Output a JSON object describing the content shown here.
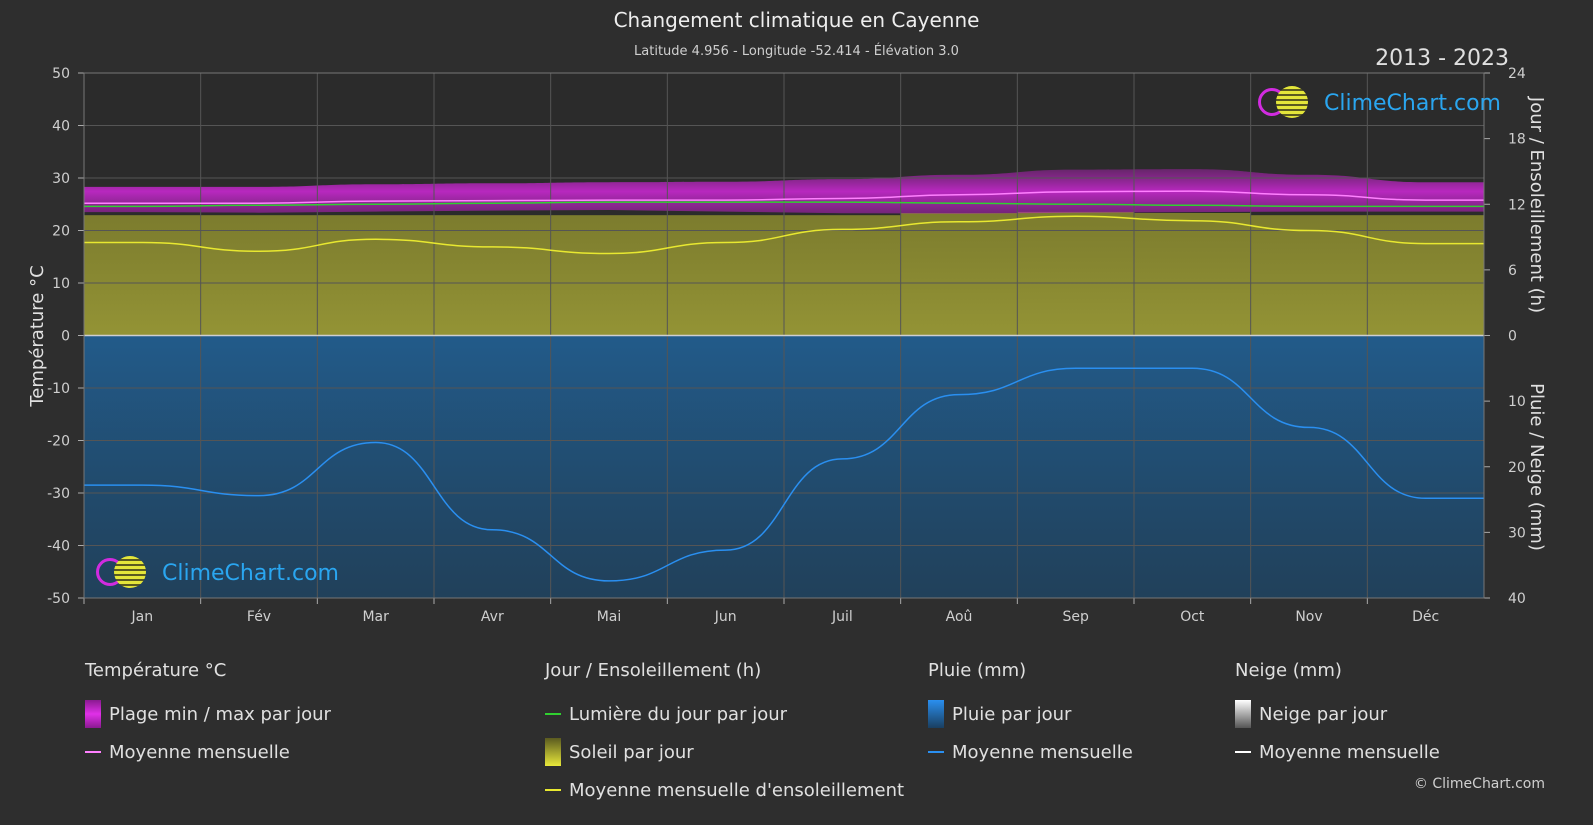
{
  "title": "Changement climatique en Cayenne",
  "subtitle": "Latitude 4.956 - Longitude -52.414 - Élévation 3.0",
  "period": "2013 - 2023",
  "brand": "ClimeChart.com",
  "copyright": "© ClimeChart.com",
  "colors": {
    "background": "#2e2e2e",
    "temp_range": "#c020c8",
    "temp_mean": "#ff80ff",
    "daylight": "#30d030",
    "sunshine_fill": "#b8b840",
    "sunshine_mean": "#e8e830",
    "rain_fill": "#1f5f94",
    "rain_mean": "#2a8ff0",
    "snow": "#ffffff"
  },
  "legend": {
    "temperature": {
      "heading": "Température °C",
      "range": "Plage min / max par jour",
      "mean": "Moyenne mensuelle"
    },
    "sun": {
      "heading": "Jour / Ensoleillement (h)",
      "daylight": "Lumière du jour par jour",
      "sunshine": "Soleil par jour",
      "sunshine_mean": "Moyenne mensuelle d'ensoleillement"
    },
    "rain": {
      "heading": "Pluie (mm)",
      "daily": "Pluie par jour",
      "mean": "Moyenne mensuelle"
    },
    "snow": {
      "heading": "Neige (mm)",
      "daily": "Neige par jour",
      "mean": "Moyenne mensuelle"
    }
  },
  "chart_data": {
    "type": "area",
    "categories": [
      "Jan",
      "Fév",
      "Mar",
      "Avr",
      "Mai",
      "Jun",
      "Juil",
      "Aoû",
      "Sep",
      "Oct",
      "Nov",
      "Déc"
    ],
    "axes": {
      "left": {
        "label": "Température °C",
        "min": -50,
        "max": 50,
        "ticks": [
          50,
          40,
          30,
          20,
          10,
          0,
          -10,
          -20,
          -30,
          -40,
          -50
        ]
      },
      "right_top": {
        "label": "Jour / Ensoleillement (h)",
        "min": 0,
        "max": 24,
        "ticks": [
          24,
          18,
          12,
          6,
          0
        ]
      },
      "right_bottom": {
        "label": "Pluie / Neige (mm)",
        "min": 0,
        "max": 40,
        "ticks": [
          0,
          10,
          20,
          30,
          40
        ]
      }
    },
    "grid": true,
    "series": [
      {
        "name": "Plage min / max par jour",
        "unit": "°C",
        "min": [
          23.5,
          23.4,
          23.6,
          23.8,
          23.9,
          23.6,
          23.3,
          23.2,
          23.4,
          23.5,
          23.6,
          23.6
        ],
        "max": [
          28.3,
          28.3,
          28.8,
          29.0,
          29.2,
          29.3,
          29.8,
          30.6,
          31.6,
          31.7,
          30.6,
          29.2
        ]
      },
      {
        "name": "Moyenne mensuelle",
        "unit": "°C",
        "values": [
          25.2,
          25.2,
          25.6,
          25.7,
          25.8,
          25.8,
          26.1,
          26.8,
          27.4,
          27.5,
          26.8,
          25.8
        ]
      },
      {
        "name": "Lumière du jour par jour",
        "unit": "h",
        "values": [
          11.8,
          11.9,
          12.0,
          12.1,
          12.2,
          12.2,
          12.2,
          12.1,
          12.0,
          11.9,
          11.8,
          11.8
        ]
      },
      {
        "name": "Soleil par jour",
        "unit": "h",
        "values": [
          11.0,
          11.0,
          11.0,
          11.0,
          11.0,
          11.0,
          11.0,
          11.2,
          11.3,
          11.2,
          11.0,
          11.0
        ]
      },
      {
        "name": "Moyenne mensuelle d'ensoleillement",
        "unit": "h",
        "values": [
          8.5,
          7.7,
          8.8,
          8.1,
          7.5,
          8.5,
          9.7,
          10.4,
          10.9,
          10.5,
          9.6,
          8.4
        ]
      },
      {
        "name": "Pluie par jour",
        "unit": "mm",
        "values": [
          40,
          40,
          40,
          40,
          40,
          40,
          40,
          40,
          40,
          40,
          40,
          40
        ]
      },
      {
        "name": "Moyenne mensuelle",
        "unit": "mm",
        "values": [
          22.8,
          24.4,
          16.3,
          29.6,
          37.4,
          32.7,
          18.8,
          9.0,
          5.0,
          5.0,
          14.0,
          24.8
        ]
      }
    ]
  }
}
